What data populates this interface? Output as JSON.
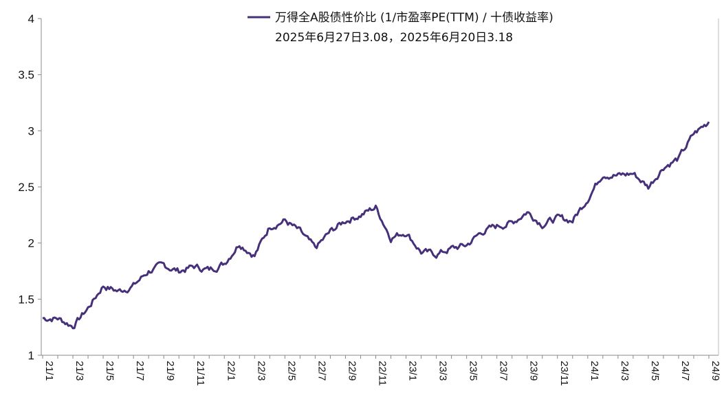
{
  "chart_data": {
    "type": "line",
    "title": "",
    "xlabel": "",
    "ylabel": "",
    "ylim": [
      1,
      4
    ],
    "yticks": [
      1,
      1.5,
      2,
      2.5,
      3,
      3.5,
      4
    ],
    "ytick_labels": [
      "1",
      "1.5",
      "2",
      "2.5",
      "3",
      "3.5",
      "4"
    ],
    "xtick_labels": [
      "21/1",
      "21/3",
      "21/5",
      "21/7",
      "21/9",
      "21/11",
      "22/1",
      "22/3",
      "22/5",
      "22/7",
      "22/9",
      "22/11",
      "23/1",
      "23/3",
      "23/5",
      "23/7",
      "23/9",
      "23/11",
      "24/1",
      "24/3",
      "24/5",
      "24/7",
      "24/9"
    ],
    "grid": false,
    "legend": "top",
    "series": [
      {
        "name": "万得全A股债性价比 (1/市盈率PE(TTM) / 十债收益率)",
        "color": "#46307a",
        "x": [
          "21/1",
          "21/2",
          "21/3",
          "21/4",
          "21/5",
          "21/6",
          "21/7",
          "21/8",
          "21/9",
          "21/10",
          "21/11",
          "21/12",
          "22/1",
          "22/2",
          "22/3",
          "22/4",
          "22/5",
          "22/6",
          "22/7",
          "22/8",
          "22/9",
          "22/10",
          "22/11",
          "22/12",
          "23/1",
          "23/2",
          "23/3",
          "23/4",
          "23/5",
          "23/6",
          "23/7",
          "23/8",
          "23/9",
          "23/10",
          "23/11",
          "23/12",
          "24/1",
          "24/2",
          "24/3",
          "24/4",
          "24/5",
          "24/6",
          "24/7",
          "24/8",
          "24/9"
        ],
        "values": [
          1.33,
          1.33,
          1.26,
          1.42,
          1.62,
          1.57,
          1.62,
          1.75,
          1.8,
          1.75,
          1.79,
          1.76,
          1.82,
          2.0,
          1.89,
          2.15,
          2.2,
          2.1,
          1.95,
          2.1,
          2.2,
          2.25,
          2.32,
          2.05,
          2.1,
          1.92,
          1.9,
          1.95,
          1.98,
          2.1,
          2.15,
          2.18,
          2.28,
          2.17,
          2.22,
          2.2,
          2.4,
          2.62,
          2.6,
          2.62,
          2.5,
          2.68,
          2.75,
          2.97,
          3.08
        ]
      }
    ],
    "annotation": "2025年6月27日3.08，2025年6月20日3.18"
  }
}
